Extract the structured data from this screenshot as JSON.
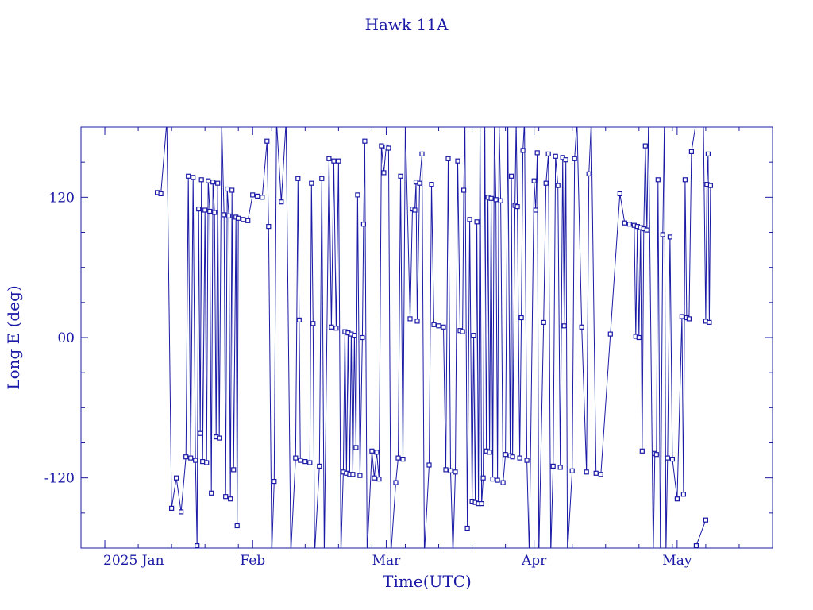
{
  "chart_data": {
    "type": "line",
    "title": "Hawk 11A",
    "xlabel": "Time(UTC)",
    "ylabel": "Long E (deg)",
    "ylim": [
      -180,
      180
    ],
    "xlim": [
      "2024-12-27",
      "2025-05-21"
    ],
    "y_ticks": [
      {
        "value": 120,
        "label": "120"
      },
      {
        "value": 0,
        "label": "00"
      },
      {
        "value": -120,
        "label": "-120"
      }
    ],
    "x_ticks": [
      {
        "date": "2025-01-01",
        "label": "2025 Jan"
      },
      {
        "date": "2025-02-01",
        "label": "Feb"
      },
      {
        "date": "2025-03-01",
        "label": "Mar"
      },
      {
        "date": "2025-04-01",
        "label": "Apr"
      },
      {
        "date": "2025-05-01",
        "label": "May"
      }
    ],
    "line_color": "#1a1aa6",
    "markers": "squares",
    "grid": false,
    "series": [
      {
        "points": [
          {
            "x": "2025-01-12",
            "y": 124
          },
          {
            "x": "2025-01-12T18:00",
            "y": 123
          },
          {
            "x": "2025-01-14",
            "y": 185
          },
          {
            "x": "2025-01-15",
            "y": -146
          },
          {
            "x": "2025-01-16",
            "y": -120
          },
          {
            "x": "2025-01-17",
            "y": -149
          },
          {
            "x": "2025-01-18",
            "y": -102
          },
          {
            "x": "2025-01-18T12:00",
            "y": 138
          },
          {
            "x": "2025-01-19",
            "y": -103
          },
          {
            "x": "2025-01-19T12:00",
            "y": 137
          },
          {
            "x": "2025-01-20",
            "y": -105
          },
          {
            "x": "2025-01-20T08:00",
            "y": -178
          },
          {
            "x": "2025-01-20T16:00",
            "y": 110
          },
          {
            "x": "2025-01-21",
            "y": -82
          },
          {
            "x": "2025-01-21T06:00",
            "y": 135
          },
          {
            "x": "2025-01-21T12:00",
            "y": -106
          },
          {
            "x": "2025-01-22",
            "y": 109
          },
          {
            "x": "2025-01-22T08:00",
            "y": -107
          },
          {
            "x": "2025-01-22T16:00",
            "y": 134
          },
          {
            "x": "2025-01-23",
            "y": 108
          },
          {
            "x": "2025-01-23T08:00",
            "y": -133
          },
          {
            "x": "2025-01-23T16:00",
            "y": 133
          },
          {
            "x": "2025-01-24",
            "y": 107
          },
          {
            "x": "2025-01-24T08:00",
            "y": -85
          },
          {
            "x": "2025-01-24T16:00",
            "y": 132
          },
          {
            "x": "2025-01-25",
            "y": -86
          },
          {
            "x": "2025-01-25T12:00",
            "y": 185
          },
          {
            "x": "2025-01-26",
            "y": 105
          },
          {
            "x": "2025-01-26T08:00",
            "y": -136
          },
          {
            "x": "2025-01-26T16:00",
            "y": 127
          },
          {
            "x": "2025-01-27",
            "y": 104
          },
          {
            "x": "2025-01-27T08:00",
            "y": -138
          },
          {
            "x": "2025-01-27T16:00",
            "y": 126
          },
          {
            "x": "2025-01-28",
            "y": -113
          },
          {
            "x": "2025-01-28T12:00",
            "y": 103
          },
          {
            "x": "2025-01-28T18:00",
            "y": -161
          },
          {
            "x": "2025-01-29",
            "y": 102
          },
          {
            "x": "2025-01-30",
            "y": 101
          },
          {
            "x": "2025-01-31",
            "y": 100
          },
          {
            "x": "2025-02-01",
            "y": 122
          },
          {
            "x": "2025-02-02",
            "y": 121
          },
          {
            "x": "2025-02-03",
            "y": 120
          },
          {
            "x": "2025-02-04",
            "y": 168
          },
          {
            "x": "2025-02-04T08:00",
            "y": 95
          },
          {
            "x": "2025-02-05",
            "y": -185
          },
          {
            "x": "2025-02-05T12:00",
            "y": -123
          },
          {
            "x": "2025-02-06",
            "y": 185
          },
          {
            "x": "2025-02-07",
            "y": 116
          },
          {
            "x": "2025-02-08",
            "y": 185
          },
          {
            "x": "2025-02-09",
            "y": -185
          },
          {
            "x": "2025-02-10",
            "y": -103
          },
          {
            "x": "2025-02-10T12:00",
            "y": 136
          },
          {
            "x": "2025-02-10T18:00",
            "y": 15
          },
          {
            "x": "2025-02-11",
            "y": -105
          },
          {
            "x": "2025-02-12",
            "y": -106
          },
          {
            "x": "2025-02-13",
            "y": -107
          },
          {
            "x": "2025-02-13T08:00",
            "y": 132
          },
          {
            "x": "2025-02-13T16:00",
            "y": 12
          },
          {
            "x": "2025-02-14",
            "y": -185
          },
          {
            "x": "2025-02-15",
            "y": -110
          },
          {
            "x": "2025-02-15T12:00",
            "y": 136
          },
          {
            "x": "2025-02-16",
            "y": -185
          },
          {
            "x": "2025-02-17",
            "y": 153
          },
          {
            "x": "2025-02-17T12:00",
            "y": 9
          },
          {
            "x": "2025-02-18",
            "y": 151
          },
          {
            "x": "2025-02-18T12:00",
            "y": 8
          },
          {
            "x": "2025-02-19",
            "y": 151
          },
          {
            "x": "2025-02-19T12:00",
            "y": -185
          },
          {
            "x": "2025-02-20",
            "y": -115
          },
          {
            "x": "2025-02-20T08:00",
            "y": 5
          },
          {
            "x": "2025-02-20T16:00",
            "y": -116
          },
          {
            "x": "2025-02-21",
            "y": 4
          },
          {
            "x": "2025-02-21T08:00",
            "y": -117
          },
          {
            "x": "2025-02-21T16:00",
            "y": 3
          },
          {
            "x": "2025-02-22",
            "y": -117
          },
          {
            "x": "2025-02-22T08:00",
            "y": 2
          },
          {
            "x": "2025-02-22T16:00",
            "y": -94
          },
          {
            "x": "2025-02-23",
            "y": 122
          },
          {
            "x": "2025-02-23T12:00",
            "y": -118
          },
          {
            "x": "2025-02-24",
            "y": 0
          },
          {
            "x": "2025-02-24T06:00",
            "y": 97
          },
          {
            "x": "2025-02-24T12:00",
            "y": 168
          },
          {
            "x": "2025-02-25",
            "y": -185
          },
          {
            "x": "2025-02-26",
            "y": -97
          },
          {
            "x": "2025-02-26T12:00",
            "y": -120
          },
          {
            "x": "2025-02-27",
            "y": -98
          },
          {
            "x": "2025-02-27T12:00",
            "y": -121
          },
          {
            "x": "2025-02-28",
            "y": 164
          },
          {
            "x": "2025-02-28T12:00",
            "y": 141
          },
          {
            "x": "2025-03-01",
            "y": 163
          },
          {
            "x": "2025-03-01T12:00",
            "y": 162
          },
          {
            "x": "2025-03-02",
            "y": -185
          },
          {
            "x": "2025-03-03",
            "y": -124
          },
          {
            "x": "2025-03-03T12:00",
            "y": -103
          },
          {
            "x": "2025-03-04",
            "y": 138
          },
          {
            "x": "2025-03-04T12:00",
            "y": -104
          },
          {
            "x": "2025-03-05",
            "y": 185
          },
          {
            "x": "2025-03-06",
            "y": 16
          },
          {
            "x": "2025-03-06T12:00",
            "y": 110
          },
          {
            "x": "2025-03-07",
            "y": 109
          },
          {
            "x": "2025-03-07T06:00",
            "y": 133
          },
          {
            "x": "2025-03-07T12:00",
            "y": 14
          },
          {
            "x": "2025-03-08",
            "y": 132
          },
          {
            "x": "2025-03-08T12:00",
            "y": 157
          },
          {
            "x": "2025-03-09",
            "y": -185
          },
          {
            "x": "2025-03-10",
            "y": -109
          },
          {
            "x": "2025-03-10T12:00",
            "y": 131
          },
          {
            "x": "2025-03-11",
            "y": 11
          },
          {
            "x": "2025-03-12",
            "y": 10
          },
          {
            "x": "2025-03-13",
            "y": 9
          },
          {
            "x": "2025-03-13T12:00",
            "y": -113
          },
          {
            "x": "2025-03-14",
            "y": 153
          },
          {
            "x": "2025-03-14T12:00",
            "y": -114
          },
          {
            "x": "2025-03-15",
            "y": -185
          },
          {
            "x": "2025-03-15T12:00",
            "y": -115
          },
          {
            "x": "2025-03-16",
            "y": 151
          },
          {
            "x": "2025-03-16T12:00",
            "y": 6
          },
          {
            "x": "2025-03-17",
            "y": 5
          },
          {
            "x": "2025-03-17T06:00",
            "y": 126
          },
          {
            "x": "2025-03-17T12:00",
            "y": 185
          },
          {
            "x": "2025-03-18",
            "y": -163
          },
          {
            "x": "2025-03-18T12:00",
            "y": 101
          },
          {
            "x": "2025-03-19",
            "y": -140
          },
          {
            "x": "2025-03-19T08:00",
            "y": 2
          },
          {
            "x": "2025-03-19T16:00",
            "y": -141
          },
          {
            "x": "2025-03-20",
            "y": 99
          },
          {
            "x": "2025-03-20T08:00",
            "y": -142
          },
          {
            "x": "2025-03-20T16:00",
            "y": 185
          },
          {
            "x": "2025-03-21",
            "y": -142
          },
          {
            "x": "2025-03-21T08:00",
            "y": -120
          },
          {
            "x": "2025-03-21T16:00",
            "y": 185
          },
          {
            "x": "2025-03-22",
            "y": -97
          },
          {
            "x": "2025-03-22T08:00",
            "y": 120
          },
          {
            "x": "2025-03-22T16:00",
            "y": -98
          },
          {
            "x": "2025-03-23",
            "y": 119
          },
          {
            "x": "2025-03-23T08:00",
            "y": -121
          },
          {
            "x": "2025-03-23T16:00",
            "y": 185
          },
          {
            "x": "2025-03-24",
            "y": 118
          },
          {
            "x": "2025-03-24T08:00",
            "y": -122
          },
          {
            "x": "2025-03-24T16:00",
            "y": 185
          },
          {
            "x": "2025-03-25",
            "y": 117
          },
          {
            "x": "2025-03-25T12:00",
            "y": -124
          },
          {
            "x": "2025-03-26",
            "y": -100
          },
          {
            "x": "2025-03-26T12:00",
            "y": 185
          },
          {
            "x": "2025-03-27",
            "y": -101
          },
          {
            "x": "2025-03-27T06:00",
            "y": 138
          },
          {
            "x": "2025-03-27T12:00",
            "y": -102
          },
          {
            "x": "2025-03-28",
            "y": 113
          },
          {
            "x": "2025-03-28T06:00",
            "y": 185
          },
          {
            "x": "2025-03-28T12:00",
            "y": 112
          },
          {
            "x": "2025-03-29",
            "y": -103
          },
          {
            "x": "2025-03-29T08:00",
            "y": 17
          },
          {
            "x": "2025-03-29T16:00",
            "y": 160
          },
          {
            "x": "2025-03-30",
            "y": 185
          },
          {
            "x": "2025-03-30T12:00",
            "y": -105
          },
          {
            "x": "2025-03-31",
            "y": -185
          },
          {
            "x": "2025-04-01",
            "y": 134
          },
          {
            "x": "2025-04-01T08:00",
            "y": 109
          },
          {
            "x": "2025-04-01T16:00",
            "y": 158
          },
          {
            "x": "2025-04-02",
            "y": -185
          },
          {
            "x": "2025-04-03",
            "y": 13
          },
          {
            "x": "2025-04-03T12:00",
            "y": 132
          },
          {
            "x": "2025-04-04",
            "y": 157
          },
          {
            "x": "2025-04-04T12:00",
            "y": -185
          },
          {
            "x": "2025-04-05",
            "y": -110
          },
          {
            "x": "2025-04-05T12:00",
            "y": 155
          },
          {
            "x": "2025-04-06",
            "y": 130
          },
          {
            "x": "2025-04-06T12:00",
            "y": -111
          },
          {
            "x": "2025-04-07",
            "y": 154
          },
          {
            "x": "2025-04-07T08:00",
            "y": 10
          },
          {
            "x": "2025-04-07T16:00",
            "y": 152
          },
          {
            "x": "2025-04-08",
            "y": -185
          },
          {
            "x": "2025-04-09",
            "y": -114
          },
          {
            "x": "2025-04-09T12:00",
            "y": 153
          },
          {
            "x": "2025-04-10",
            "y": 185
          },
          {
            "x": "2025-04-11",
            "y": 9
          },
          {
            "x": "2025-04-12",
            "y": -115
          },
          {
            "x": "2025-04-12T12:00",
            "y": 140
          },
          {
            "x": "2025-04-13",
            "y": 185
          },
          {
            "x": "2025-04-14",
            "y": -116
          },
          {
            "x": "2025-04-15",
            "y": -117
          },
          {
            "x": "2025-04-17",
            "y": 3
          },
          {
            "x": "2025-04-19",
            "y": 123
          },
          {
            "x": "2025-04-20",
            "y": 98
          },
          {
            "x": "2025-04-21",
            "y": 97
          },
          {
            "x": "2025-04-22",
            "y": 96
          },
          {
            "x": "2025-04-22T08:00",
            "y": 1
          },
          {
            "x": "2025-04-22T16:00",
            "y": 95
          },
          {
            "x": "2025-04-23",
            "y": 0
          },
          {
            "x": "2025-04-23T08:00",
            "y": 94
          },
          {
            "x": "2025-04-23T16:00",
            "y": -97
          },
          {
            "x": "2025-04-24",
            "y": 93
          },
          {
            "x": "2025-04-24T08:00",
            "y": 164
          },
          {
            "x": "2025-04-24T16:00",
            "y": 92
          },
          {
            "x": "2025-04-25",
            "y": 185
          },
          {
            "x": "2025-04-26",
            "y": -185
          },
          {
            "x": "2025-04-26T08:00",
            "y": -99
          },
          {
            "x": "2025-04-26T16:00",
            "y": -100
          },
          {
            "x": "2025-04-27",
            "y": 135
          },
          {
            "x": "2025-04-27T12:00",
            "y": -185
          },
          {
            "x": "2025-04-28",
            "y": 88
          },
          {
            "x": "2025-04-28T08:00",
            "y": 185
          },
          {
            "x": "2025-04-28T16:00",
            "y": -185
          },
          {
            "x": "2025-04-29",
            "y": -103
          },
          {
            "x": "2025-04-29T12:00",
            "y": 86
          },
          {
            "x": "2025-04-30",
            "y": -104
          },
          {
            "x": "2025-05-01",
            "y": -138
          },
          {
            "x": "2025-05-02",
            "y": 18
          },
          {
            "x": "2025-05-02T08:00",
            "y": -134
          },
          {
            "x": "2025-05-02T16:00",
            "y": 135
          },
          {
            "x": "2025-05-03",
            "y": 17
          },
          {
            "x": "2025-05-03T12:00",
            "y": 16
          },
          {
            "x": "2025-05-04",
            "y": 159
          },
          {
            "x": "2025-05-05",
            "y": 185
          },
          {
            "x": "2025-05-06",
            "y": 185
          },
          {
            "x": "2025-05-06T12:00",
            "y": 185
          },
          {
            "x": "2025-05-07",
            "y": 14
          },
          {
            "x": "2025-05-07T06:00",
            "y": 131
          },
          {
            "x": "2025-05-07T12:00",
            "y": 157
          },
          {
            "x": "2025-05-07T18:00",
            "y": 13
          },
          {
            "x": "2025-05-08",
            "y": 130
          }
        ]
      },
      {
        "points": [
          {
            "x": "2025-05-05",
            "y": -178
          },
          {
            "x": "2025-05-07",
            "y": -156
          }
        ]
      }
    ]
  }
}
